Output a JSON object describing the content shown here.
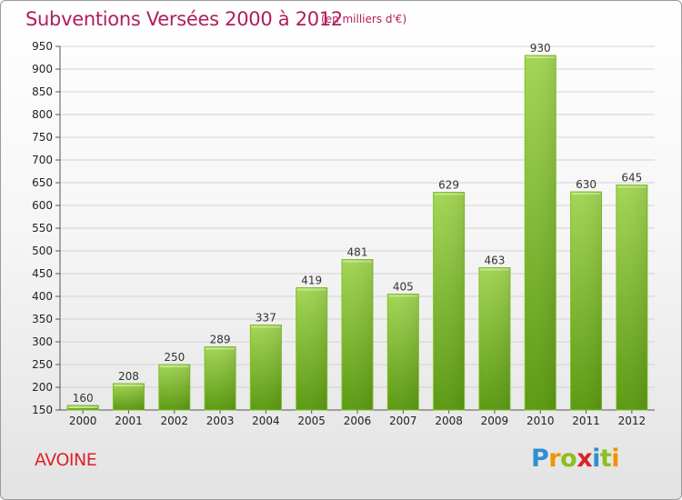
{
  "header": {
    "title": "Subventions Versées 2000 à 2012",
    "subtitle": "(en milliers d'€)"
  },
  "footer": {
    "commune": "AVOINE",
    "logo": "Proxiti"
  },
  "colors": {
    "title": "#b01e5c",
    "commune": "#d9232d",
    "bar_light": "#9ed04f",
    "bar_dark": "#5f9e14"
  },
  "chart_data": {
    "type": "bar",
    "title": "Subventions Versées 2000 à 2012",
    "subtitle": "(en milliers d'€)",
    "xlabel": "",
    "ylabel": "",
    "categories": [
      "2000",
      "2001",
      "2002",
      "2003",
      "2004",
      "2005",
      "2006",
      "2007",
      "2008",
      "2009",
      "2010",
      "2011",
      "2012"
    ],
    "values": [
      160,
      208,
      250,
      289,
      337,
      419,
      481,
      405,
      629,
      463,
      930,
      630,
      645
    ],
    "ylim": [
      150,
      950
    ],
    "yticks": [
      150,
      200,
      250,
      300,
      350,
      400,
      450,
      500,
      550,
      600,
      650,
      700,
      750,
      800,
      850,
      900,
      950
    ],
    "grid": true,
    "data_labels": true
  }
}
